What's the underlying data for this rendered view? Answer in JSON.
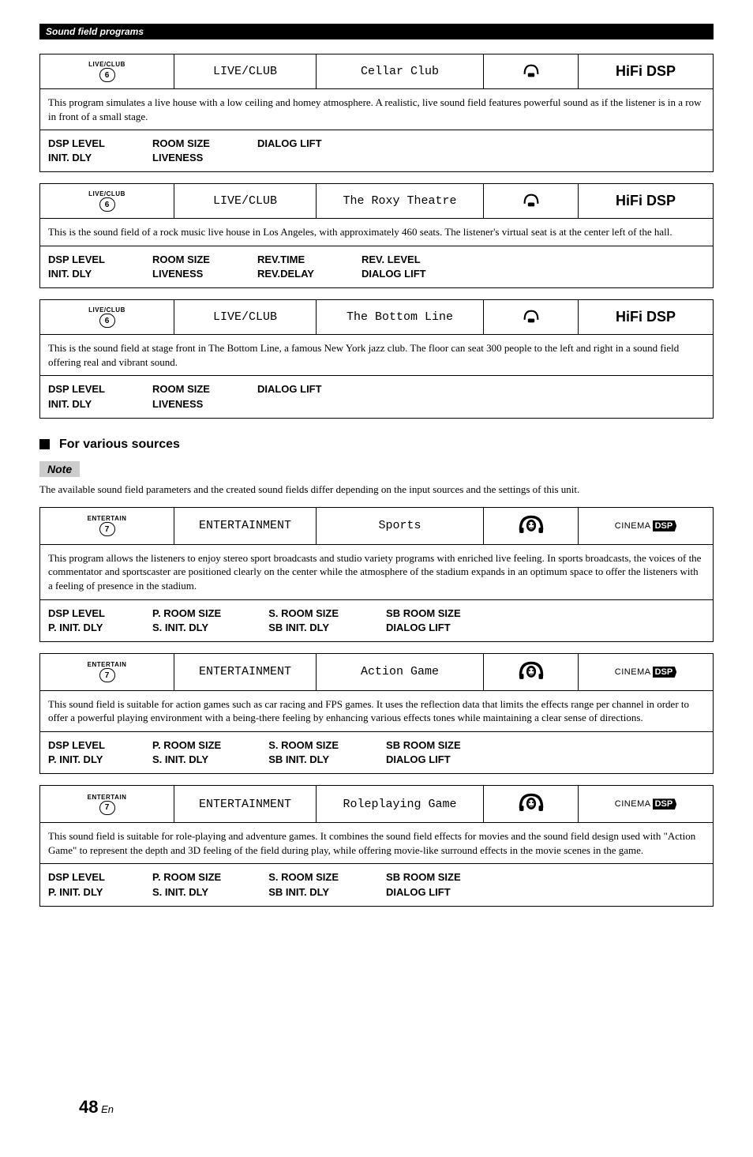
{
  "headerBar": "Sound field programs",
  "blocks": [
    {
      "btnLabel": "LIVE/CLUB",
      "btnNum": "6",
      "category": "LIVE/CLUB",
      "name": "Cellar Club",
      "iconType": "headphone",
      "badgeType": "hifi",
      "badgeText": "HiFi DSP",
      "desc": "This program simulates a live house with a low ceiling and homey atmosphere. A realistic, live sound field features powerful sound as if the listener is in a row in front of a small stage.",
      "params": [
        [
          "DSP LEVEL",
          "INIT. DLY"
        ],
        [
          "ROOM SIZE",
          "LIVENESS"
        ],
        [
          "DIALOG LIFT"
        ]
      ]
    },
    {
      "btnLabel": "LIVE/CLUB",
      "btnNum": "6",
      "category": "LIVE/CLUB",
      "name": "The Roxy Theatre",
      "iconType": "headphone",
      "badgeType": "hifi",
      "badgeText": "HiFi DSP",
      "desc": "This is the sound field of a rock music live house in Los Angeles, with approximately 460 seats. The listener's virtual seat is at the center left of the hall.",
      "params": [
        [
          "DSP LEVEL",
          "INIT. DLY"
        ],
        [
          "ROOM SIZE",
          "LIVENESS"
        ],
        [
          "REV.TIME",
          "REV.DELAY"
        ],
        [
          "REV. LEVEL",
          "DIALOG LIFT"
        ]
      ]
    },
    {
      "btnLabel": "LIVE/CLUB",
      "btnNum": "6",
      "category": "LIVE/CLUB",
      "name": "The Bottom Line",
      "iconType": "headphone",
      "badgeType": "hifi",
      "badgeText": "HiFi DSP",
      "desc": "This is the sound field at stage front in The Bottom Line, a famous New York jazz club. The floor can seat 300 people to the left and right in a sound field offering real and vibrant sound.",
      "params": [
        [
          "DSP LEVEL",
          "INIT. DLY"
        ],
        [
          "ROOM SIZE",
          "LIVENESS"
        ],
        [
          "DIALOG LIFT"
        ]
      ]
    }
  ],
  "sectionHeading": "For various sources",
  "noteLabel": "Note",
  "noteText": "The available sound field parameters and the created sound fields differ depending on the input sources and the settings of this unit.",
  "blocks2": [
    {
      "btnLabel": "ENTERTAIN",
      "btnNum": "7",
      "category": "ENTERTAINMENT",
      "name": "Sports",
      "iconType": "surround",
      "badgeType": "cinema",
      "desc": "This program allows the listeners to enjoy stereo sport broadcasts and studio variety programs with enriched live feeling. In sports broadcasts, the voices of the commentator and sportscaster are positioned clearly on the center while the atmosphere of the stadium expands in an optimum space to offer the listeners with a feeling of presence in the stadium.",
      "params": [
        [
          "DSP LEVEL",
          "P. INIT. DLY"
        ],
        [
          "P. ROOM SIZE",
          "S. INIT. DLY"
        ],
        [
          "S. ROOM SIZE",
          "SB INIT. DLY"
        ],
        [
          "SB ROOM SIZE",
          "DIALOG LIFT"
        ]
      ]
    },
    {
      "btnLabel": "ENTERTAIN",
      "btnNum": "7",
      "category": "ENTERTAINMENT",
      "name": "Action Game",
      "iconType": "surround",
      "badgeType": "cinema",
      "desc": "This sound field is suitable for action games such as car racing and FPS games. It uses the reflection data that limits the effects range per channel in order to offer a powerful playing environment with a being-there feeling by enhancing various effects tones while maintaining a clear sense of directions.",
      "params": [
        [
          "DSP LEVEL",
          "P. INIT. DLY"
        ],
        [
          "P. ROOM SIZE",
          "S. INIT. DLY"
        ],
        [
          "S. ROOM SIZE",
          "SB INIT. DLY"
        ],
        [
          "SB ROOM SIZE",
          "DIALOG LIFT"
        ]
      ]
    },
    {
      "btnLabel": "ENTERTAIN",
      "btnNum": "7",
      "category": "ENTERTAINMENT",
      "name": "Roleplaying Game",
      "iconType": "surround",
      "badgeType": "cinema",
      "desc": "This sound field is suitable for role-playing and adventure games. It combines the sound field effects for movies and the sound field design used with \"Action Game\" to represent the depth and 3D feeling of the field during play, while offering movie-like surround effects in the movie scenes in the game.",
      "params": [
        [
          "DSP LEVEL",
          "P. INIT. DLY"
        ],
        [
          "P. ROOM SIZE",
          "S. INIT. DLY"
        ],
        [
          "S. ROOM SIZE",
          "SB INIT. DLY"
        ],
        [
          "SB ROOM SIZE",
          "DIALOG LIFT"
        ]
      ]
    }
  ],
  "pageNumBig": "48",
  "pageNumSmall": "En",
  "cinemaText": "CINEMA",
  "cinemaDsp": "DSP"
}
